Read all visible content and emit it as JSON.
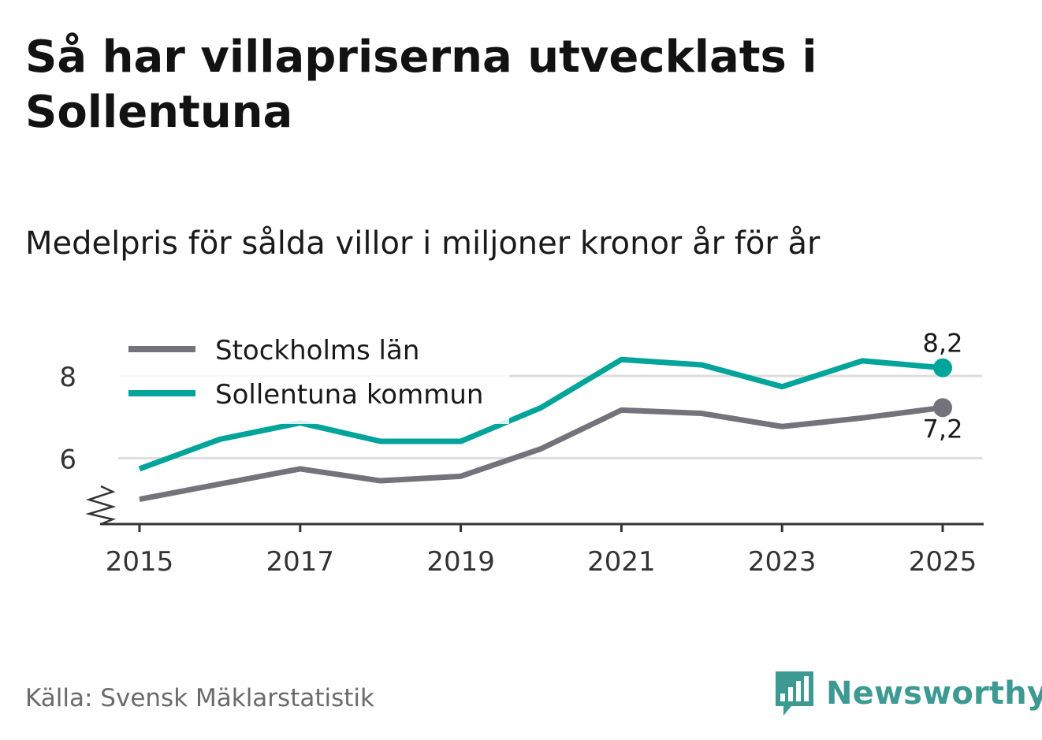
{
  "title": "Så har villapriserna utvecklats i Sollentuna",
  "subtitle": "Medelpris för sålda villor i miljoner kronor år för år",
  "source": "Källa: Svensk Mäklarstatistik",
  "brand": "Newsworthy",
  "colors": {
    "stockholm": "#74737b",
    "sollentuna": "#00a49a",
    "grid": "#dddddd",
    "axis": "#333333",
    "brand": "#3d9a92"
  },
  "chart_data": {
    "type": "line",
    "title": "Så har villapriserna utvecklats i Sollentuna",
    "ylabel": "Medelpris för sålda villor i miljoner kronor år för år",
    "x": [
      2015,
      2016,
      2017,
      2018,
      2019,
      2020,
      2021,
      2022,
      2023,
      2024,
      2025
    ],
    "xticks": [
      "2015",
      "2017",
      "2019",
      "2021",
      "2023",
      "2025"
    ],
    "yticks": [
      "6",
      "8"
    ],
    "ylim": [
      4.3,
      9.0
    ],
    "y_axis_break": true,
    "grid": true,
    "legend_position": "top-left",
    "series": [
      {
        "name": "Stockholms län",
        "key": "stockholm",
        "values": [
          5.0,
          5.37,
          5.74,
          5.45,
          5.56,
          6.23,
          7.17,
          7.09,
          6.77,
          6.98,
          7.23
        ],
        "end_label": "7,2"
      },
      {
        "name": "Sollentuna kommun",
        "key": "sollentuna",
        "values": [
          5.74,
          6.46,
          6.86,
          6.41,
          6.41,
          7.23,
          8.4,
          8.27,
          7.74,
          8.37,
          8.2
        ],
        "end_label": "8,2"
      }
    ]
  }
}
